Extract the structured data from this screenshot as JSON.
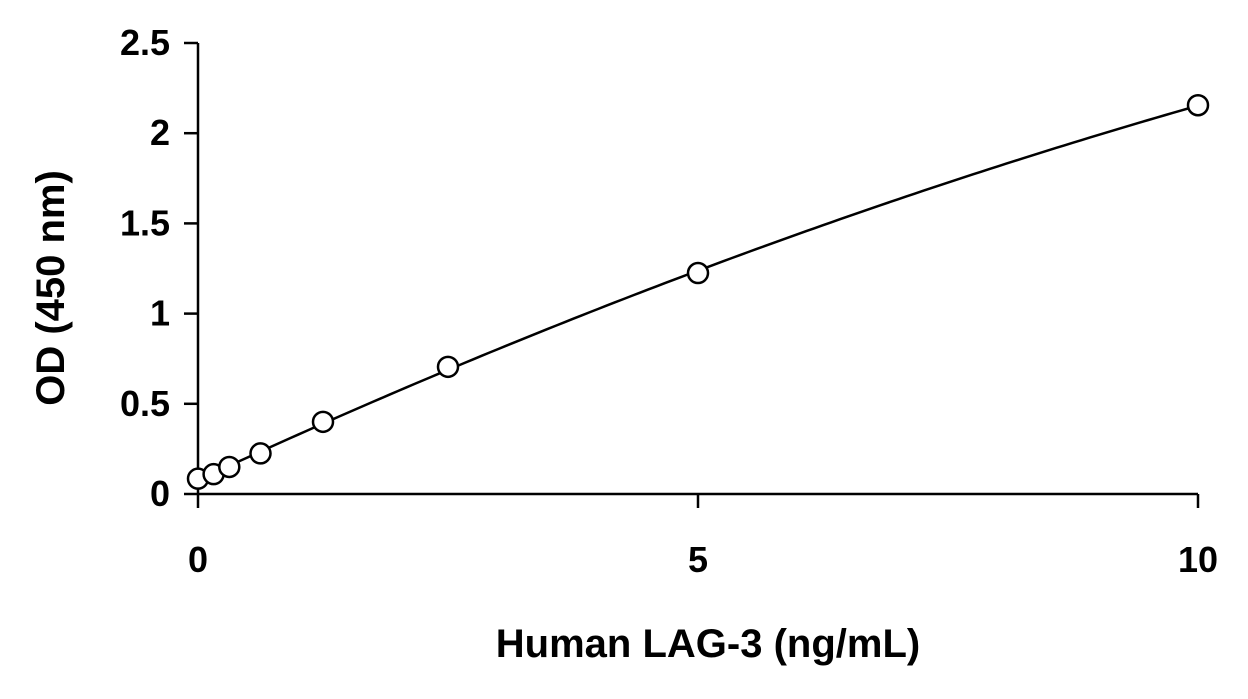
{
  "chart_data": {
    "type": "scatter",
    "title": "",
    "xlabel": "Human LAG-3 (ng/mL)",
    "ylabel": "OD (450 nm)",
    "xlim": [
      0,
      10
    ],
    "ylim": [
      0,
      2.5
    ],
    "xticks": [
      0,
      5,
      10
    ],
    "xtick_labels": [
      "0",
      "5",
      "10"
    ],
    "yticks": [
      0,
      0.5,
      1,
      1.5,
      2,
      2.5
    ],
    "ytick_labels": [
      "0",
      "0.5",
      "1",
      "1.5",
      "2",
      "2.5"
    ],
    "grid": false,
    "legend": "none",
    "series": [
      {
        "marker": "open-circle",
        "fit_line": true,
        "x": [
          0,
          0.156,
          0.313,
          0.625,
          1.25,
          2.5,
          5,
          10
        ],
        "y": [
          0.085,
          0.11,
          0.15,
          0.225,
          0.4,
          0.705,
          1.225,
          2.155
        ]
      }
    ]
  }
}
